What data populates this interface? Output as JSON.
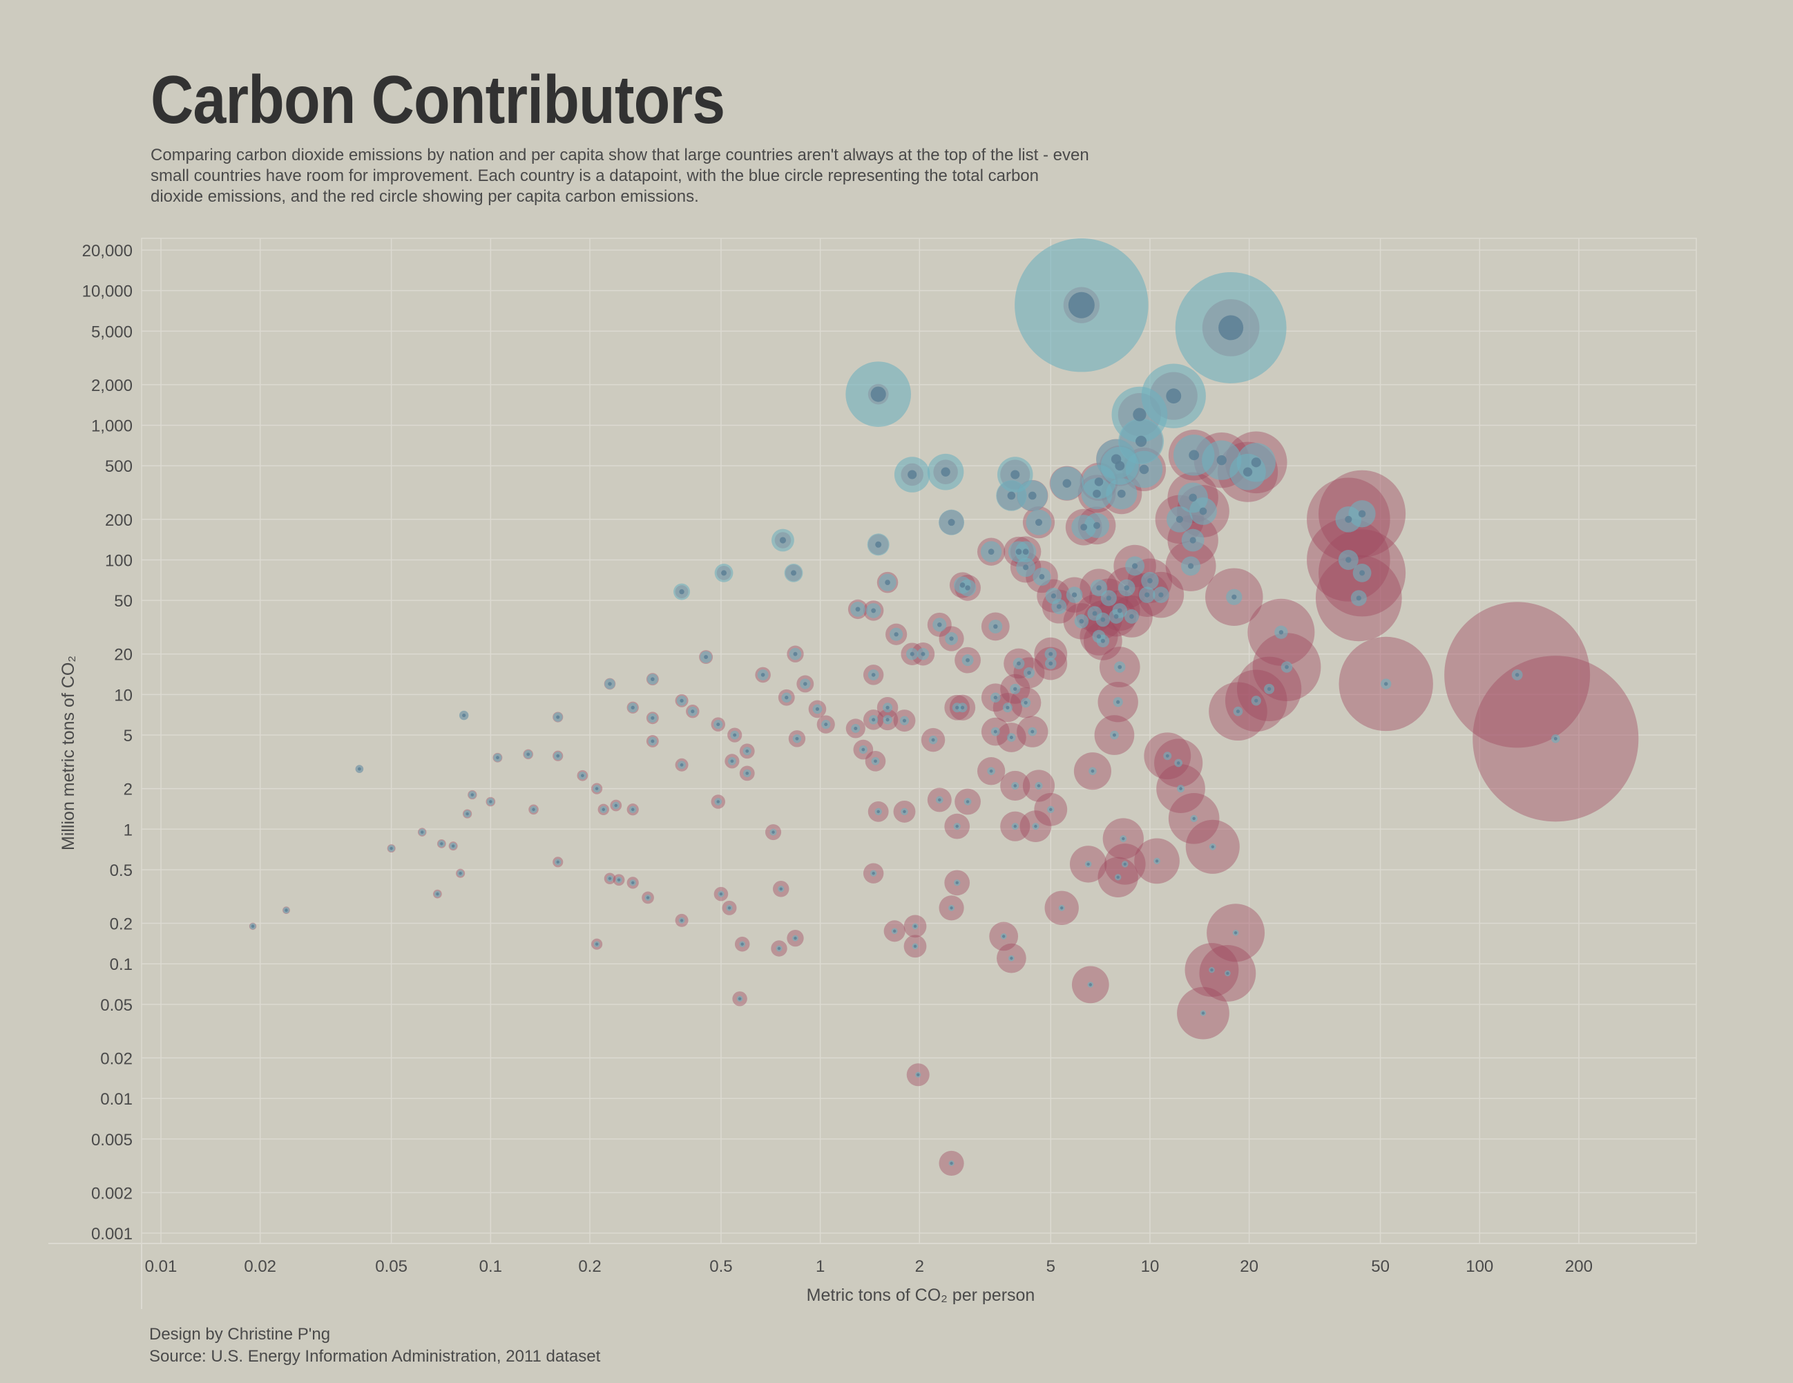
{
  "title": "Carbon Contributors",
  "subtitle": "Comparing carbon dioxide emissions by nation and per capita show that large countries aren't always at the top of the list - even small countries have room for improvement. Each country is a datapoint, with the blue circle representing the total carbon dioxide emissions, and the red circle showing per capita carbon emissions.",
  "credits": {
    "design": "Design by Christine P'ng",
    "source": "Source: U.S. Energy Information Administration, 2011 dataset"
  },
  "colors": {
    "background": "#cdcbbf",
    "total_emissions": "#6fb0be",
    "per_capita": "#a0485f",
    "center_dot": "#5c7f95",
    "grid": "#dcdad1"
  },
  "chart_data": {
    "type": "scatter",
    "title": "Carbon Contributors",
    "xlabel": "Metric tons of CO₂ per person",
    "ylabel": "Million metric tons of CO₂",
    "xscale": "log",
    "yscale": "log",
    "xlim": [
      0.01,
      300
    ],
    "ylim": [
      0.001,
      20000
    ],
    "xticks": [
      {
        "v": 0.01,
        "label": "0.01"
      },
      {
        "v": 0.02,
        "label": "0.02"
      },
      {
        "v": 0.05,
        "label": "0.05"
      },
      {
        "v": 0.1,
        "label": "0.1"
      },
      {
        "v": 0.2,
        "label": "0.2"
      },
      {
        "v": 0.5,
        "label": "0.5"
      },
      {
        "v": 1,
        "label": "1"
      },
      {
        "v": 2,
        "label": "2"
      },
      {
        "v": 5,
        "label": "5"
      },
      {
        "v": 10,
        "label": "10"
      },
      {
        "v": 20,
        "label": "20"
      },
      {
        "v": 50,
        "label": "50"
      },
      {
        "v": 100,
        "label": "100"
      },
      {
        "v": 200,
        "label": "200"
      }
    ],
    "yticks": [
      {
        "v": 20000,
        "label": "20,000"
      },
      {
        "v": 10000,
        "label": "10,000"
      },
      {
        "v": 5000,
        "label": "5,000"
      },
      {
        "v": 2000,
        "label": "2,000"
      },
      {
        "v": 1000,
        "label": "1,000"
      },
      {
        "v": 500,
        "label": "500"
      },
      {
        "v": 200,
        "label": "200"
      },
      {
        "v": 100,
        "label": "100"
      },
      {
        "v": 50,
        "label": "50"
      },
      {
        "v": 20,
        "label": "20"
      },
      {
        "v": 10,
        "label": "10"
      },
      {
        "v": 5,
        "label": "5"
      },
      {
        "v": 2,
        "label": "2"
      },
      {
        "v": 1,
        "label": "1"
      },
      {
        "v": 0.5,
        "label": "0.5"
      },
      {
        "v": 0.2,
        "label": "0.2"
      },
      {
        "v": 0.1,
        "label": "0.1"
      },
      {
        "v": 0.05,
        "label": "0.05"
      },
      {
        "v": 0.02,
        "label": "0.02"
      },
      {
        "v": 0.01,
        "label": "0.01"
      },
      {
        "v": 0.005,
        "label": "0.005"
      },
      {
        "v": 0.002,
        "label": "0.002"
      },
      {
        "v": 0.001,
        "label": "0.001"
      }
    ],
    "grid": true,
    "legend": "none",
    "encoding": [
      "per_capita",
      "total",
      "total_circle_size",
      "per_capita_circle_size"
    ],
    "points": [
      [
        6.2,
        7800,
        7800,
        6.2
      ],
      [
        17.6,
        5300,
        5300,
        17.6
      ],
      [
        1.5,
        1700,
        1700,
        1.5
      ],
      [
        11.8,
        1650,
        1650,
        11.8
      ],
      [
        9.3,
        1200,
        1200,
        9.3
      ],
      [
        9.4,
        760,
        760,
        9.4
      ],
      [
        13.6,
        600,
        600,
        13.6
      ],
      [
        16.5,
        550,
        550,
        16.5
      ],
      [
        21,
        530,
        530,
        21
      ],
      [
        7.9,
        560,
        560,
        7.9
      ],
      [
        19.8,
        450,
        450,
        19.8
      ],
      [
        9.6,
        470,
        470,
        9.6
      ],
      [
        1.9,
        430,
        430,
        1.9
      ],
      [
        2.4,
        450,
        450,
        2.4
      ],
      [
        3.9,
        430,
        430,
        3.9
      ],
      [
        8.1,
        500,
        500,
        8.1
      ],
      [
        5.6,
        370,
        370,
        5.6
      ],
      [
        7.0,
        380,
        380,
        7.0
      ],
      [
        3.8,
        300,
        300,
        3.8
      ],
      [
        4.4,
        300,
        300,
        4.4
      ],
      [
        6.9,
        310,
        310,
        6.9
      ],
      [
        8.2,
        310,
        310,
        8.2
      ],
      [
        13.5,
        290,
        290,
        13.5
      ],
      [
        14.5,
        230,
        230,
        14.5
      ],
      [
        12.3,
        200,
        200,
        12.3
      ],
      [
        40,
        200,
        200,
        40
      ],
      [
        44,
        220,
        220,
        44
      ],
      [
        2.5,
        190,
        190,
        2.5
      ],
      [
        4.6,
        190,
        190,
        4.6
      ],
      [
        6.3,
        175,
        175,
        6.3
      ],
      [
        6.9,
        180,
        180,
        6.9
      ],
      [
        13.5,
        140,
        140,
        13.5
      ],
      [
        0.77,
        140,
        140,
        0.77
      ],
      [
        1.5,
        130,
        130,
        1.5
      ],
      [
        3.3,
        115,
        115,
        3.3
      ],
      [
        4.0,
        115,
        115,
        4.0
      ],
      [
        4.2,
        115,
        115,
        4.2
      ],
      [
        40,
        100,
        100,
        40
      ],
      [
        13.3,
        90,
        90,
        13.3
      ],
      [
        9.0,
        90,
        90,
        9.0
      ],
      [
        4.2,
        88,
        88,
        4.2
      ],
      [
        0.51,
        80,
        80,
        0.51
      ],
      [
        0.83,
        80,
        80,
        0.83
      ],
      [
        4.7,
        75,
        75,
        4.7
      ],
      [
        44,
        80,
        80,
        44
      ],
      [
        10.0,
        70,
        70,
        10.0
      ],
      [
        1.6,
        68,
        68,
        1.6
      ],
      [
        2.7,
        65,
        65,
        2.7
      ],
      [
        2.8,
        62,
        62,
        2.8
      ],
      [
        7.0,
        62,
        62,
        7.0
      ],
      [
        8.5,
        62,
        62,
        8.5
      ],
      [
        0.38,
        58,
        58,
        0.38
      ],
      [
        5.1,
        54,
        54,
        5.1
      ],
      [
        5.9,
        55,
        55,
        5.9
      ],
      [
        7.5,
        52,
        52,
        7.5
      ],
      [
        9.8,
        55,
        55,
        9.8
      ],
      [
        10.8,
        55,
        55,
        10.8
      ],
      [
        18,
        53,
        53,
        18
      ],
      [
        43,
        52,
        52,
        43
      ],
      [
        5.3,
        45,
        45,
        5.3
      ],
      [
        6.8,
        40,
        40,
        6.8
      ],
      [
        8.1,
        42,
        42,
        8.1
      ],
      [
        8.8,
        38,
        38,
        8.8
      ],
      [
        6.2,
        35,
        35,
        6.2
      ],
      [
        7.2,
        36,
        36,
        7.2
      ],
      [
        7.9,
        38,
        38,
        7.9
      ],
      [
        1.3,
        43,
        43,
        1.3
      ],
      [
        1.45,
        42,
        42,
        1.45
      ],
      [
        2.3,
        33,
        33,
        2.3
      ],
      [
        3.4,
        32,
        32,
        3.4
      ],
      [
        25,
        29,
        29,
        25
      ],
      [
        1.7,
        28,
        28,
        1.7
      ],
      [
        2.5,
        26,
        26,
        2.5
      ],
      [
        7.0,
        27,
        27,
        7.0
      ],
      [
        7.2,
        25,
        25,
        7.2
      ],
      [
        1.9,
        20,
        20,
        1.9
      ],
      [
        2.05,
        20,
        20,
        2.05
      ],
      [
        0.45,
        19,
        19,
        0.45
      ],
      [
        0.84,
        20,
        20,
        0.84
      ],
      [
        5.0,
        20,
        20,
        5.0
      ],
      [
        2.8,
        18,
        18,
        2.8
      ],
      [
        4.0,
        17,
        17,
        4.0
      ],
      [
        5.0,
        17,
        17,
        5.0
      ],
      [
        26,
        16,
        16,
        26
      ],
      [
        8.1,
        16,
        16,
        8.1
      ],
      [
        0.67,
        14,
        14,
        0.67
      ],
      [
        1.45,
        14,
        14,
        1.45
      ],
      [
        4.3,
        14.5,
        14.5,
        4.3
      ],
      [
        130,
        14,
        14,
        130
      ],
      [
        0.23,
        12,
        12,
        0.23
      ],
      [
        0.31,
        13,
        13,
        0.31
      ],
      [
        0.9,
        12,
        12,
        0.9
      ],
      [
        3.9,
        11,
        11,
        3.9
      ],
      [
        23,
        11,
        11,
        23
      ],
      [
        52,
        12,
        12,
        52
      ],
      [
        0.38,
        9,
        9,
        0.38
      ],
      [
        0.79,
        9.5,
        9.5,
        0.79
      ],
      [
        3.4,
        9.5,
        9.5,
        3.4
      ],
      [
        4.2,
        8.7,
        8.7,
        4.2
      ],
      [
        8.0,
        8.8,
        8.8,
        8.0
      ],
      [
        21,
        9,
        9,
        21
      ],
      [
        0.27,
        8,
        8,
        0.27
      ],
      [
        0.41,
        7.5,
        7.5,
        0.41
      ],
      [
        0.98,
        7.8,
        7.8,
        0.98
      ],
      [
        1.6,
        8,
        8,
        1.6
      ],
      [
        2.6,
        8,
        8,
        2.6
      ],
      [
        2.7,
        8,
        8,
        2.7
      ],
      [
        3.7,
        8,
        8,
        3.7
      ],
      [
        18.5,
        7.5,
        7.5,
        18.5
      ],
      [
        0.083,
        7,
        7,
        0.083
      ],
      [
        0.16,
        6.8,
        6.8,
        0.16
      ],
      [
        0.31,
        6.7,
        6.7,
        0.31
      ],
      [
        1.45,
        6.5,
        6.5,
        1.45
      ],
      [
        1.6,
        6.5,
        6.5,
        1.6
      ],
      [
        1.8,
        6.4,
        6.4,
        1.8
      ],
      [
        1.04,
        6,
        6,
        1.04
      ],
      [
        0.49,
        6,
        6,
        0.49
      ],
      [
        1.28,
        5.6,
        5.6,
        1.28
      ],
      [
        4.4,
        5.3,
        5.3,
        4.4
      ],
      [
        3.4,
        5.3,
        5.3,
        3.4
      ],
      [
        7.8,
        5,
        5,
        7.8
      ],
      [
        0.55,
        5,
        5,
        0.55
      ],
      [
        0.85,
        4.7,
        4.7,
        0.85
      ],
      [
        2.2,
        4.6,
        4.6,
        2.2
      ],
      [
        3.8,
        4.8,
        4.8,
        3.8
      ],
      [
        0.31,
        4.5,
        4.5,
        0.31
      ],
      [
        170,
        4.7,
        4.7,
        170
      ],
      [
        0.6,
        3.8,
        3.8,
        0.6
      ],
      [
        1.35,
        3.9,
        3.9,
        1.35
      ],
      [
        11.3,
        3.5,
        3.5,
        11.3
      ],
      [
        0.105,
        3.4,
        3.4,
        0.105
      ],
      [
        0.13,
        3.6,
        3.6,
        0.13
      ],
      [
        0.16,
        3.5,
        3.5,
        0.16
      ],
      [
        0.54,
        3.2,
        3.2,
        0.54
      ],
      [
        1.47,
        3.2,
        3.2,
        1.47
      ],
      [
        12.2,
        3.1,
        3.1,
        12.2
      ],
      [
        0.38,
        3,
        3,
        0.38
      ],
      [
        0.04,
        2.8,
        2.8,
        0.04
      ],
      [
        3.3,
        2.7,
        2.7,
        3.3
      ],
      [
        6.7,
        2.7,
        2.7,
        6.7
      ],
      [
        0.19,
        2.5,
        2.5,
        0.19
      ],
      [
        0.6,
        2.6,
        2.6,
        0.6
      ],
      [
        3.9,
        2.1,
        2.1,
        3.9
      ],
      [
        4.6,
        2.1,
        2.1,
        4.6
      ],
      [
        12.4,
        2,
        2,
        12.4
      ],
      [
        0.21,
        2,
        2,
        0.21
      ],
      [
        0.088,
        1.8,
        1.8,
        0.088
      ],
      [
        0.1,
        1.6,
        1.6,
        0.1
      ],
      [
        0.49,
        1.6,
        1.6,
        0.49
      ],
      [
        2.3,
        1.65,
        1.65,
        2.3
      ],
      [
        2.8,
        1.6,
        1.6,
        2.8
      ],
      [
        0.24,
        1.5,
        1.5,
        0.24
      ],
      [
        0.135,
        1.4,
        1.4,
        0.135
      ],
      [
        0.22,
        1.4,
        1.4,
        0.22
      ],
      [
        0.27,
        1.4,
        1.4,
        0.27
      ],
      [
        5.0,
        1.4,
        1.4,
        5.0
      ],
      [
        0.085,
        1.3,
        1.3,
        0.085
      ],
      [
        1.5,
        1.35,
        1.35,
        1.5
      ],
      [
        1.8,
        1.35,
        1.35,
        1.8
      ],
      [
        13.6,
        1.2,
        1.2,
        13.6
      ],
      [
        2.6,
        1.05,
        1.05,
        2.6
      ],
      [
        3.9,
        1.05,
        1.05,
        3.9
      ],
      [
        4.5,
        1.05,
        1.05,
        4.5
      ],
      [
        0.062,
        0.95,
        0.95,
        0.062
      ],
      [
        0.72,
        0.95,
        0.95,
        0.72
      ],
      [
        8.3,
        0.85,
        0.85,
        8.3
      ],
      [
        0.071,
        0.78,
        0.78,
        0.071
      ],
      [
        0.077,
        0.75,
        0.75,
        0.077
      ],
      [
        0.05,
        0.72,
        0.72,
        0.05
      ],
      [
        15.5,
        0.74,
        0.74,
        15.5
      ],
      [
        10.5,
        0.58,
        0.58,
        10.5
      ],
      [
        8.4,
        0.55,
        0.55,
        8.4
      ],
      [
        6.5,
        0.55,
        0.55,
        6.5
      ],
      [
        0.16,
        0.57,
        0.57,
        0.16
      ],
      [
        1.45,
        0.47,
        0.47,
        1.45
      ],
      [
        0.081,
        0.47,
        0.47,
        0.081
      ],
      [
        8.0,
        0.44,
        0.44,
        8.0
      ],
      [
        0.23,
        0.43,
        0.43,
        0.23
      ],
      [
        0.245,
        0.42,
        0.42,
        0.245
      ],
      [
        0.27,
        0.4,
        0.4,
        0.27
      ],
      [
        2.6,
        0.4,
        0.4,
        2.6
      ],
      [
        0.76,
        0.36,
        0.36,
        0.76
      ],
      [
        0.069,
        0.33,
        0.33,
        0.069
      ],
      [
        0.3,
        0.31,
        0.31,
        0.3
      ],
      [
        0.5,
        0.33,
        0.33,
        0.5
      ],
      [
        0.53,
        0.26,
        0.26,
        0.53
      ],
      [
        2.5,
        0.26,
        0.26,
        2.5
      ],
      [
        5.4,
        0.26,
        0.26,
        5.4
      ],
      [
        0.024,
        0.25,
        0.25,
        0.024
      ],
      [
        0.38,
        0.21,
        0.21,
        0.38
      ],
      [
        0.019,
        0.19,
        0.19,
        0.019
      ],
      [
        1.94,
        0.19,
        0.19,
        1.94
      ],
      [
        1.68,
        0.175,
        0.175,
        1.68
      ],
      [
        18.2,
        0.17,
        0.17,
        18.2
      ],
      [
        3.6,
        0.16,
        0.16,
        3.6
      ],
      [
        0.84,
        0.155,
        0.155,
        0.84
      ],
      [
        0.58,
        0.14,
        0.14,
        0.58
      ],
      [
        0.75,
        0.13,
        0.13,
        0.75
      ],
      [
        1.94,
        0.135,
        0.135,
        1.94
      ],
      [
        0.21,
        0.14,
        0.14,
        0.21
      ],
      [
        3.8,
        0.11,
        0.11,
        3.8
      ],
      [
        15.4,
        0.09,
        0.09,
        15.4
      ],
      [
        17.2,
        0.085,
        0.085,
        17.2
      ],
      [
        6.6,
        0.07,
        0.07,
        6.6
      ],
      [
        0.57,
        0.055,
        0.055,
        0.57
      ],
      [
        14.5,
        0.043,
        0.043,
        14.5
      ],
      [
        1.98,
        0.015,
        0.015,
        1.98
      ],
      [
        2.5,
        0.0033,
        0.0033,
        2.5
      ]
    ]
  }
}
